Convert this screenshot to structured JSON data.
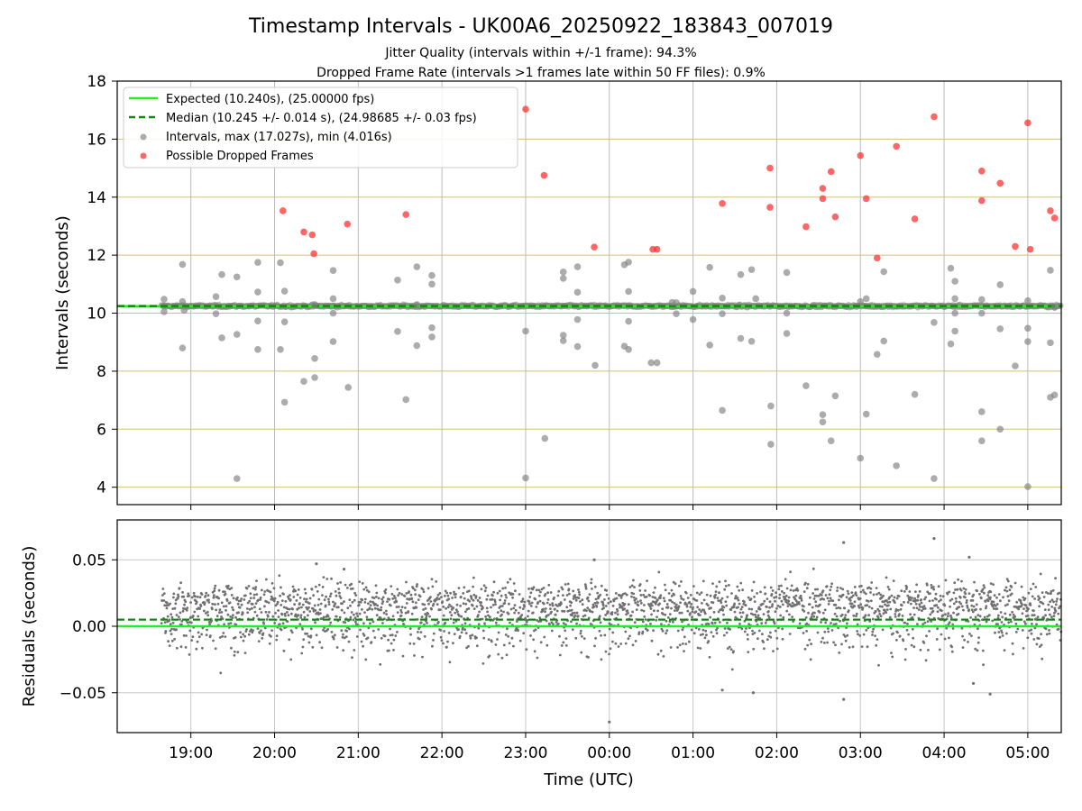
{
  "chart_data": [
    {
      "type": "scatter",
      "title": "Timestamp Intervals - UK00A6_20250922_183843_007019",
      "subtitle_lines": [
        "Jitter Quality (intervals within +/-1 frame): 94.3%",
        "Dropped Frame Rate (intervals >1 frames late within 50 FF files): 0.9%"
      ],
      "ylabel": "Intervals (seconds)",
      "xlim_hours": [
        18.12,
        29.4
      ],
      "ylim": [
        3.4,
        18.0
      ],
      "yticks": [
        4,
        6,
        8,
        10,
        12,
        14,
        16,
        18
      ],
      "gridlines_y": [
        4,
        6,
        8,
        10,
        12,
        14,
        16,
        18
      ],
      "legend_position": "upper-left",
      "legend": [
        "Expected (10.240s), (25.00000 fps)",
        "Median (10.245 +/- 0.014 s), (24.98685 +/- 0.03 fps)",
        "Intervals, max (17.027s), min (4.016s)",
        "Possible Dropped Frames"
      ],
      "expected": 10.24,
      "median": 10.245,
      "colors": {
        "expected": "#22ee22",
        "median": "#118811",
        "intervals": "#808080",
        "dropped": "#ff3333",
        "grid_y": "#d6bd7a",
        "grid_x": "#bbbbbb"
      },
      "dense_band": {
        "center": 10.245,
        "start_hours": 18.65,
        "end_hours": 29.4
      },
      "series": [
        {
          "name": "Intervals",
          "points": [
            [
              18.68,
              10.48
            ],
            [
              18.68,
              10.05
            ],
            [
              18.9,
              11.68
            ],
            [
              18.9,
              8.8
            ],
            [
              18.9,
              10.4
            ],
            [
              18.92,
              10.1
            ],
            [
              19.3,
              10.57
            ],
            [
              19.3,
              9.98
            ],
            [
              19.37,
              11.33
            ],
            [
              19.37,
              9.15
            ],
            [
              19.55,
              11.25
            ],
            [
              19.55,
              9.27
            ],
            [
              19.55,
              4.3
            ],
            [
              19.8,
              11.75
            ],
            [
              19.8,
              10.73
            ],
            [
              19.8,
              9.73
            ],
            [
              19.8,
              8.75
            ],
            [
              20.07,
              11.74
            ],
            [
              20.07,
              8.75
            ],
            [
              20.12,
              10.76
            ],
            [
              20.12,
              9.7
            ],
            [
              20.12,
              6.93
            ],
            [
              20.35,
              7.65
            ],
            [
              20.48,
              7.78
            ],
            [
              20.48,
              8.44
            ],
            [
              20.48,
              10.3
            ],
            [
              20.7,
              11.47
            ],
            [
              20.7,
              9.02
            ],
            [
              20.7,
              10.5
            ],
            [
              20.7,
              10.0
            ],
            [
              20.88,
              7.44
            ],
            [
              21.47,
              11.14
            ],
            [
              21.47,
              9.37
            ],
            [
              21.57,
              7.02
            ],
            [
              21.7,
              11.6
            ],
            [
              21.7,
              8.88
            ],
            [
              21.7,
              10.3
            ],
            [
              21.88,
              11.3
            ],
            [
              21.88,
              11.0
            ],
            [
              21.88,
              9.5
            ],
            [
              21.88,
              9.18
            ],
            [
              23.0,
              9.38
            ],
            [
              23.0,
              4.32
            ],
            [
              23.23,
              5.68
            ],
            [
              23.45,
              11.42
            ],
            [
              23.45,
              11.2
            ],
            [
              23.45,
              9.24
            ],
            [
              23.45,
              9.05
            ],
            [
              23.62,
              11.6
            ],
            [
              23.62,
              10.72
            ],
            [
              23.62,
              8.85
            ],
            [
              23.62,
              9.78
            ],
            [
              23.83,
              8.2
            ],
            [
              24.18,
              11.67
            ],
            [
              24.23,
              11.76
            ],
            [
              24.18,
              8.86
            ],
            [
              24.23,
              8.75
            ],
            [
              24.23,
              10.75
            ],
            [
              24.23,
              9.72
            ],
            [
              24.5,
              8.29
            ],
            [
              24.57,
              8.29
            ],
            [
              24.75,
              10.37
            ],
            [
              24.8,
              9.98
            ],
            [
              24.8,
              10.36
            ],
            [
              25.0,
              10.75
            ],
            [
              25.0,
              9.78
            ],
            [
              25.2,
              11.58
            ],
            [
              25.2,
              8.9
            ],
            [
              25.35,
              10.52
            ],
            [
              25.35,
              9.98
            ],
            [
              25.35,
              6.65
            ],
            [
              25.57,
              11.33
            ],
            [
              25.57,
              9.13
            ],
            [
              25.7,
              11.5
            ],
            [
              25.7,
              9.03
            ],
            [
              25.75,
              10.5
            ],
            [
              25.93,
              6.8
            ],
            [
              25.93,
              5.48
            ],
            [
              26.12,
              11.4
            ],
            [
              26.12,
              9.3
            ],
            [
              26.12,
              10.0
            ],
            [
              26.35,
              7.5
            ],
            [
              26.55,
              6.5
            ],
            [
              26.55,
              6.25
            ],
            [
              26.65,
              5.6
            ],
            [
              26.7,
              7.15
            ],
            [
              27.0,
              5.0
            ],
            [
              27.0,
              10.4
            ],
            [
              27.07,
              10.5
            ],
            [
              27.07,
              6.52
            ],
            [
              27.2,
              8.58
            ],
            [
              27.28,
              11.43
            ],
            [
              27.28,
              9.04
            ],
            [
              27.43,
              4.74
            ],
            [
              27.65,
              7.2
            ],
            [
              27.88,
              9.68
            ],
            [
              27.88,
              4.3
            ],
            [
              28.08,
              11.55
            ],
            [
              28.08,
              8.94
            ],
            [
              28.13,
              11.1
            ],
            [
              28.13,
              9.38
            ],
            [
              28.13,
              10.5
            ],
            [
              28.13,
              10.0
            ],
            [
              28.45,
              10.47
            ],
            [
              28.45,
              10.0
            ],
            [
              28.45,
              6.6
            ],
            [
              28.45,
              5.6
            ],
            [
              28.67,
              10.98
            ],
            [
              28.67,
              9.46
            ],
            [
              28.67,
              6.0
            ],
            [
              28.85,
              8.18
            ],
            [
              29.0,
              10.43
            ],
            [
              29.0,
              9.48
            ],
            [
              29.0,
              9.02
            ],
            [
              29.0,
              4.02
            ],
            [
              29.27,
              11.48
            ],
            [
              29.27,
              8.98
            ],
            [
              29.27,
              7.1
            ],
            [
              29.32,
              7.18
            ],
            [
              29.32,
              10.2
            ]
          ]
        },
        {
          "name": "Possible Dropped Frames",
          "points": [
            [
              20.1,
              13.53
            ],
            [
              20.35,
              12.8
            ],
            [
              20.45,
              12.7
            ],
            [
              20.47,
              12.05
            ],
            [
              20.87,
              13.07
            ],
            [
              21.57,
              13.4
            ],
            [
              23.0,
              17.03
            ],
            [
              23.22,
              14.75
            ],
            [
              23.82,
              12.28
            ],
            [
              24.52,
              12.2
            ],
            [
              24.57,
              12.2
            ],
            [
              25.35,
              13.78
            ],
            [
              25.92,
              15.0
            ],
            [
              25.92,
              13.65
            ],
            [
              26.35,
              12.98
            ],
            [
              26.55,
              14.3
            ],
            [
              26.55,
              13.95
            ],
            [
              26.65,
              14.88
            ],
            [
              26.7,
              13.32
            ],
            [
              27.0,
              15.43
            ],
            [
              27.07,
              13.95
            ],
            [
              27.2,
              11.9
            ],
            [
              27.43,
              15.75
            ],
            [
              27.65,
              13.25
            ],
            [
              27.88,
              16.77
            ],
            [
              28.45,
              14.9
            ],
            [
              28.45,
              13.88
            ],
            [
              28.67,
              14.48
            ],
            [
              28.85,
              12.3
            ],
            [
              29.0,
              16.56
            ],
            [
              29.03,
              12.2
            ],
            [
              29.27,
              13.53
            ],
            [
              29.32,
              13.28
            ]
          ]
        }
      ]
    },
    {
      "type": "scatter",
      "xlabel": "Time (UTC)",
      "ylabel": "Residuals (seconds)",
      "xlim_hours": [
        18.12,
        29.4
      ],
      "ylim": [
        -0.08,
        0.08
      ],
      "yticks": [
        -0.05,
        0.0,
        0.05
      ],
      "ytick_labels": [
        "−0.05",
        "0.00",
        "0.05"
      ],
      "xticks_hours": [
        19,
        20,
        21,
        22,
        23,
        24,
        25,
        26,
        27,
        28,
        29
      ],
      "xtick_labels": [
        "19:00",
        "20:00",
        "21:00",
        "22:00",
        "23:00",
        "00:00",
        "01:00",
        "02:00",
        "03:00",
        "04:00",
        "05:00"
      ],
      "zero_line": 0.0,
      "median_offset": 0.005,
      "outliers": [
        [
          23.82,
          0.05
        ],
        [
          24.0,
          -0.072
        ],
        [
          25.35,
          -0.048
        ],
        [
          25.72,
          -0.05
        ],
        [
          26.8,
          0.063
        ],
        [
          26.8,
          -0.055
        ],
        [
          27.88,
          0.066
        ],
        [
          28.35,
          -0.043
        ],
        [
          28.55,
          -0.051
        ],
        [
          28.3,
          0.052
        ],
        [
          20.5,
          0.047
        ],
        [
          20.83,
          0.043
        ]
      ],
      "colors": {
        "points": "#707070",
        "zero_line": "#22ee22",
        "median_line": "#118811",
        "grid": "#c8c8c8"
      }
    }
  ]
}
